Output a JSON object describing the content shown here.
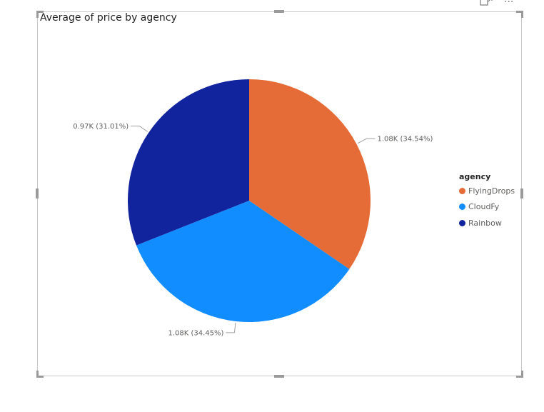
{
  "header": {
    "focus_icon": "focus-mode-icon",
    "more_icon": "more-options-icon",
    "more_glyph": "···"
  },
  "chart_data": {
    "type": "pie",
    "title": "Average of price by agency",
    "legend": {
      "title": "agency",
      "placement": "right"
    },
    "slices": [
      {
        "name": "FlyingDrops",
        "value": 1.08,
        "percent": 34.54,
        "label": "1.08K (34.54%)",
        "color": "#E66C37"
      },
      {
        "name": "CloudFy",
        "value": 1.08,
        "percent": 34.45,
        "label": "1.08K (34.45%)",
        "color": "#118DFF"
      },
      {
        "name": "Rainbow",
        "value": 0.97,
        "percent": 31.01,
        "label": "0.97K (31.01%)",
        "color": "#12239E"
      }
    ]
  }
}
